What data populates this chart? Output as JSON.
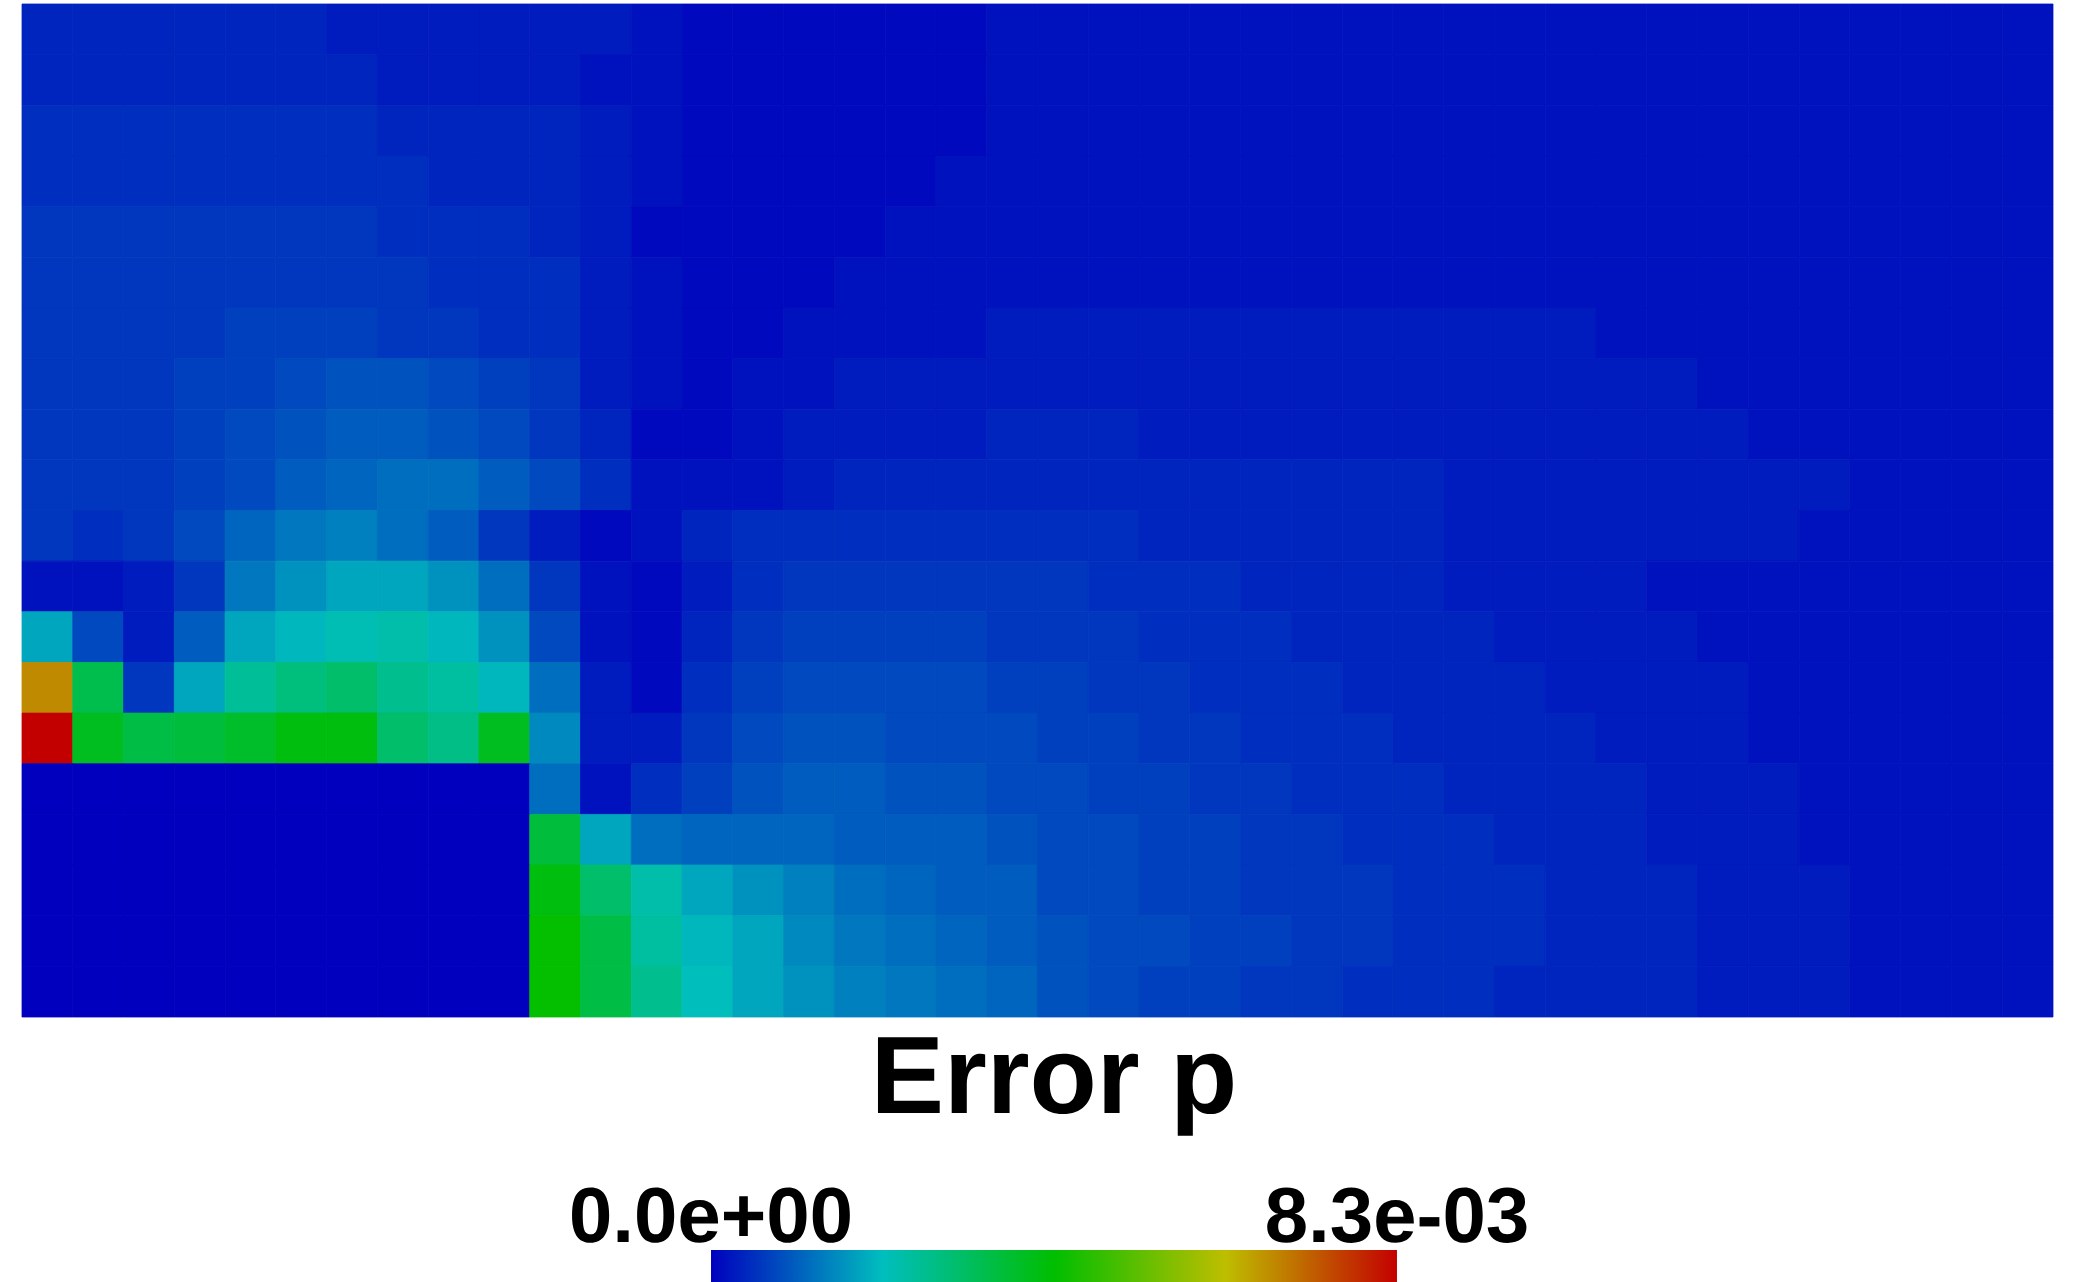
{
  "chart_data": {
    "type": "heatmap",
    "categories": [
      null,
      null,
      null,
      null,
      null,
      null,
      null,
      null,
      null,
      null,
      null,
      null,
      null,
      null,
      null,
      null,
      null,
      null,
      null,
      null,
      null,
      null,
      null,
      null,
      null,
      null,
      null,
      null,
      null,
      null,
      null,
      null,
      null,
      null,
      null,
      null,
      null,
      null,
      null,
      null
    ],
    "y_categories": [
      null,
      null,
      null,
      null,
      null,
      null,
      null,
      null,
      null,
      null,
      null,
      null,
      null,
      null,
      null,
      null,
      null,
      null,
      null,
      null
    ],
    "cells": [
      [
        0.0004,
        0.0004,
        0.0004,
        0.0004,
        0.0004,
        0.0004,
        0.0003,
        0.0003,
        0.0003,
        0.0003,
        0.0003,
        0.0003,
        0.0002,
        0.0001,
        0.0001,
        0.0001,
        0.0001,
        0.0001,
        0.0001,
        0.0002,
        0.0002,
        0.0002,
        0.0002,
        0.0002,
        0.0002,
        0.0002,
        0.0002,
        0.0002,
        0.0002,
        0.0002,
        0.0002,
        0.0002,
        0.0002,
        0.0002,
        0.0002,
        0.0002,
        0.0002,
        0.0002,
        0.0002,
        0.0002
      ],
      [
        0.0004,
        0.0004,
        0.0004,
        0.0004,
        0.0004,
        0.0004,
        0.0004,
        0.0003,
        0.0003,
        0.0003,
        0.0003,
        0.0002,
        0.0002,
        0.0001,
        0.0001,
        0.0001,
        0.0001,
        0.0001,
        0.0001,
        0.0002,
        0.0002,
        0.0002,
        0.0002,
        0.0002,
        0.0002,
        0.0002,
        0.0002,
        0.0002,
        0.0002,
        0.0002,
        0.0002,
        0.0002,
        0.0002,
        0.0002,
        0.0002,
        0.0002,
        0.0002,
        0.0002,
        0.0002,
        0.0002
      ],
      [
        0.0005,
        0.0005,
        0.0005,
        0.0005,
        0.0005,
        0.0005,
        0.0005,
        0.0004,
        0.0004,
        0.0004,
        0.0004,
        0.0003,
        0.0002,
        0.0001,
        0.0001,
        0.0001,
        0.0001,
        0.0001,
        0.0001,
        0.0002,
        0.0002,
        0.0002,
        0.0002,
        0.0002,
        0.0002,
        0.0002,
        0.0002,
        0.0002,
        0.0002,
        0.0002,
        0.0002,
        0.0002,
        0.0002,
        0.0002,
        0.0002,
        0.0002,
        0.0002,
        0.0002,
        0.0002,
        0.0002
      ],
      [
        0.0005,
        0.0005,
        0.0005,
        0.0005,
        0.0005,
        0.0005,
        0.0005,
        0.0005,
        0.0004,
        0.0004,
        0.0004,
        0.0003,
        0.0002,
        0.0001,
        0.0001,
        0.0001,
        0.0001,
        0.0001,
        0.0002,
        0.0002,
        0.0002,
        0.0002,
        0.0002,
        0.0002,
        0.0002,
        0.0002,
        0.0002,
        0.0002,
        0.0002,
        0.0002,
        0.0002,
        0.0002,
        0.0002,
        0.0002,
        0.0002,
        0.0002,
        0.0002,
        0.0002,
        0.0002,
        0.0002
      ],
      [
        0.0006,
        0.0006,
        0.0006,
        0.0006,
        0.0006,
        0.0006,
        0.0006,
        0.0005,
        0.0005,
        0.0005,
        0.0004,
        0.0003,
        0.0001,
        0.0001,
        0.0001,
        0.0001,
        0.0001,
        0.0002,
        0.0002,
        0.0002,
        0.0002,
        0.0002,
        0.0002,
        0.0002,
        0.0002,
        0.0002,
        0.0002,
        0.0002,
        0.0002,
        0.0002,
        0.0002,
        0.0002,
        0.0002,
        0.0002,
        0.0002,
        0.0002,
        0.0002,
        0.0002,
        0.0002,
        0.0002
      ],
      [
        0.0006,
        0.0006,
        0.0006,
        0.0006,
        0.0006,
        0.0006,
        0.0006,
        0.0006,
        0.0005,
        0.0005,
        0.0005,
        0.0003,
        0.0002,
        0.0001,
        0.0001,
        0.0001,
        0.0002,
        0.0002,
        0.0002,
        0.0002,
        0.0002,
        0.0002,
        0.0002,
        0.0002,
        0.0002,
        0.0002,
        0.0002,
        0.0002,
        0.0002,
        0.0002,
        0.0002,
        0.0002,
        0.0002,
        0.0002,
        0.0002,
        0.0002,
        0.0002,
        0.0002,
        0.0002,
        0.0002
      ],
      [
        0.0006,
        0.0006,
        0.0006,
        0.0006,
        0.0007,
        0.0007,
        0.0007,
        0.0006,
        0.0006,
        0.0005,
        0.0005,
        0.0003,
        0.0002,
        0.0001,
        0.0001,
        0.0002,
        0.0002,
        0.0002,
        0.0002,
        0.0003,
        0.0003,
        0.0003,
        0.0003,
        0.0003,
        0.0003,
        0.0003,
        0.0003,
        0.0003,
        0.0003,
        0.0003,
        0.0003,
        0.0002,
        0.0002,
        0.0002,
        0.0002,
        0.0002,
        0.0002,
        0.0002,
        0.0002,
        0.0002
      ],
      [
        0.0006,
        0.0006,
        0.0006,
        0.0007,
        0.0007,
        0.0008,
        0.0009,
        0.0009,
        0.0008,
        0.0007,
        0.0006,
        0.0003,
        0.0002,
        0.0001,
        0.0002,
        0.0002,
        0.0003,
        0.0003,
        0.0003,
        0.0003,
        0.0003,
        0.0003,
        0.0003,
        0.0003,
        0.0003,
        0.0003,
        0.0003,
        0.0003,
        0.0003,
        0.0003,
        0.0003,
        0.0003,
        0.0003,
        0.0002,
        0.0002,
        0.0002,
        0.0002,
        0.0002,
        0.0002,
        0.0002
      ],
      [
        0.0006,
        0.0006,
        0.0006,
        0.0007,
        0.0008,
        0.0009,
        0.001,
        0.001,
        0.0009,
        0.0008,
        0.0006,
        0.0004,
        0.0001,
        0.0001,
        0.0002,
        0.0003,
        0.0003,
        0.0003,
        0.0003,
        0.0004,
        0.0004,
        0.0004,
        0.0003,
        0.0003,
        0.0003,
        0.0003,
        0.0003,
        0.0003,
        0.0003,
        0.0003,
        0.0003,
        0.0003,
        0.0003,
        0.0003,
        0.0002,
        0.0002,
        0.0002,
        0.0002,
        0.0002,
        0.0002
      ],
      [
        0.0006,
        0.0006,
        0.0006,
        0.0007,
        0.0008,
        0.001,
        0.0011,
        0.0012,
        0.0012,
        0.001,
        0.0008,
        0.0005,
        0.0002,
        0.0002,
        0.0002,
        0.0003,
        0.0004,
        0.0004,
        0.0004,
        0.0004,
        0.0004,
        0.0004,
        0.0004,
        0.0004,
        0.0004,
        0.0004,
        0.0004,
        0.0004,
        0.0003,
        0.0003,
        0.0003,
        0.0003,
        0.0003,
        0.0003,
        0.0003,
        0.0003,
        0.0002,
        0.0002,
        0.0002,
        0.0002
      ],
      [
        0.0006,
        0.0005,
        0.0006,
        0.0008,
        0.0011,
        0.0013,
        0.0014,
        0.0012,
        0.001,
        0.0006,
        0.0003,
        0.0001,
        0.0002,
        0.0004,
        0.0005,
        0.0005,
        0.0005,
        0.0005,
        0.0005,
        0.0005,
        0.0005,
        0.0005,
        0.0004,
        0.0004,
        0.0004,
        0.0004,
        0.0004,
        0.0004,
        0.0003,
        0.0003,
        0.0003,
        0.0003,
        0.0003,
        0.0003,
        0.0003,
        0.0002,
        0.0002,
        0.0002,
        0.0002,
        0.0002
      ],
      [
        0.0002,
        0.0002,
        0.0003,
        0.0006,
        0.0013,
        0.0016,
        0.0018,
        0.0018,
        0.0016,
        0.0012,
        0.0006,
        0.0002,
        0.0001,
        0.0003,
        0.0005,
        0.0006,
        0.0006,
        0.0006,
        0.0006,
        0.0006,
        0.0006,
        0.0005,
        0.0005,
        0.0005,
        0.0004,
        0.0004,
        0.0004,
        0.0004,
        0.0003,
        0.0003,
        0.0003,
        0.0003,
        0.0002,
        0.0002,
        0.0002,
        0.0002,
        0.0002,
        0.0002,
        0.0002,
        0.0002
      ],
      [
        0.0018,
        0.0008,
        0.0003,
        0.001,
        0.0018,
        0.002,
        0.0022,
        0.0023,
        0.002,
        0.0016,
        0.0008,
        0.0002,
        0.0001,
        0.0004,
        0.0006,
        0.0007,
        0.0007,
        0.0007,
        0.0007,
        0.0006,
        0.0006,
        0.0006,
        0.0005,
        0.0005,
        0.0005,
        0.0004,
        0.0004,
        0.0004,
        0.0004,
        0.0003,
        0.0003,
        0.0003,
        0.0003,
        0.0002,
        0.0002,
        0.0002,
        0.0002,
        0.0002,
        0.0002,
        0.0002
      ],
      [
        0.0068,
        0.0033,
        0.0006,
        0.0018,
        0.0025,
        0.0028,
        0.003,
        0.0026,
        0.0024,
        0.002,
        0.0012,
        0.0003,
        0.0001,
        0.0005,
        0.0007,
        0.0008,
        0.0008,
        0.0008,
        0.0008,
        0.0007,
        0.0007,
        0.0006,
        0.0006,
        0.0005,
        0.0005,
        0.0005,
        0.0004,
        0.0004,
        0.0004,
        0.0004,
        0.0003,
        0.0003,
        0.0003,
        0.0003,
        0.0002,
        0.0002,
        0.0002,
        0.0002,
        0.0002,
        0.0002
      ],
      [
        0.0083,
        0.0038,
        0.0034,
        0.0035,
        0.0037,
        0.004,
        0.004,
        0.003,
        0.0027,
        0.0038,
        0.0015,
        0.0003,
        0.0003,
        0.0006,
        0.0008,
        0.0009,
        0.0009,
        0.0008,
        0.0008,
        0.0008,
        0.0007,
        0.0007,
        0.0006,
        0.0006,
        0.0005,
        0.0005,
        0.0005,
        0.0004,
        0.0004,
        0.0004,
        0.0004,
        0.0003,
        0.0003,
        0.0003,
        0.0002,
        0.0002,
        0.0002,
        0.0002,
        0.0002,
        0.0002
      ],
      [
        0,
        0,
        0,
        0,
        0,
        0,
        0,
        0,
        0,
        0,
        0.0012,
        0.0002,
        0.0005,
        0.0007,
        0.0009,
        0.001,
        0.001,
        0.0009,
        0.0009,
        0.0008,
        0.0008,
        0.0007,
        0.0007,
        0.0006,
        0.0006,
        0.0005,
        0.0005,
        0.0005,
        0.0004,
        0.0004,
        0.0004,
        0.0004,
        0.0003,
        0.0003,
        0.0003,
        0.0002,
        0.0002,
        0.0002,
        0.0002,
        0.0002
      ],
      [
        0,
        0,
        0,
        0,
        0,
        0,
        0,
        0,
        0,
        0,
        0.0035,
        0.0018,
        0.0012,
        0.0011,
        0.0011,
        0.0011,
        0.001,
        0.001,
        0.001,
        0.0009,
        0.0008,
        0.0008,
        0.0007,
        0.0007,
        0.0006,
        0.0006,
        0.0005,
        0.0005,
        0.0005,
        0.0004,
        0.0004,
        0.0004,
        0.0003,
        0.0003,
        0.0003,
        0.0002,
        0.0002,
        0.0002,
        0.0002,
        0.0002
      ],
      [
        0,
        0,
        0,
        0,
        0,
        0,
        0,
        0,
        0,
        0,
        0.004,
        0.003,
        0.0023,
        0.0018,
        0.0016,
        0.0014,
        0.0012,
        0.0011,
        0.001,
        0.001,
        0.0008,
        0.0008,
        0.0007,
        0.0007,
        0.0006,
        0.0006,
        0.0006,
        0.0005,
        0.0005,
        0.0005,
        0.0004,
        0.0004,
        0.0004,
        0.0003,
        0.0003,
        0.0003,
        0.0002,
        0.0002,
        0.0002,
        0.0002
      ],
      [
        0,
        0,
        0,
        0,
        0,
        0,
        0,
        0,
        0,
        0,
        0.0042,
        0.0034,
        0.0024,
        0.002,
        0.0018,
        0.0015,
        0.0013,
        0.0012,
        0.0011,
        0.001,
        0.0009,
        0.0008,
        0.0008,
        0.0007,
        0.0007,
        0.0006,
        0.0006,
        0.0005,
        0.0005,
        0.0005,
        0.0004,
        0.0004,
        0.0004,
        0.0003,
        0.0003,
        0.0003,
        0.0002,
        0.0002,
        0.0002,
        0.0002
      ],
      [
        0,
        0,
        0,
        0,
        0,
        0,
        0,
        0,
        0,
        0,
        0.0042,
        0.0034,
        0.0026,
        0.0021,
        0.0018,
        0.0016,
        0.0014,
        0.0013,
        0.0012,
        0.0011,
        0.0009,
        0.0008,
        0.0007,
        0.0007,
        0.0006,
        0.0006,
        0.0005,
        0.0005,
        0.0005,
        0.0004,
        0.0004,
        0.0004,
        0.0004,
        0.0003,
        0.0003,
        0.0003,
        0.0002,
        0.0002,
        0.0002,
        0.0002
      ]
    ],
    "clabel": "Error p",
    "clim": [
      0,
      0.0083
    ],
    "cticks": [
      {
        "value": 0,
        "label": "0.0e+00"
      },
      {
        "value": 0.0083,
        "label": "8.3e-03"
      }
    ]
  }
}
